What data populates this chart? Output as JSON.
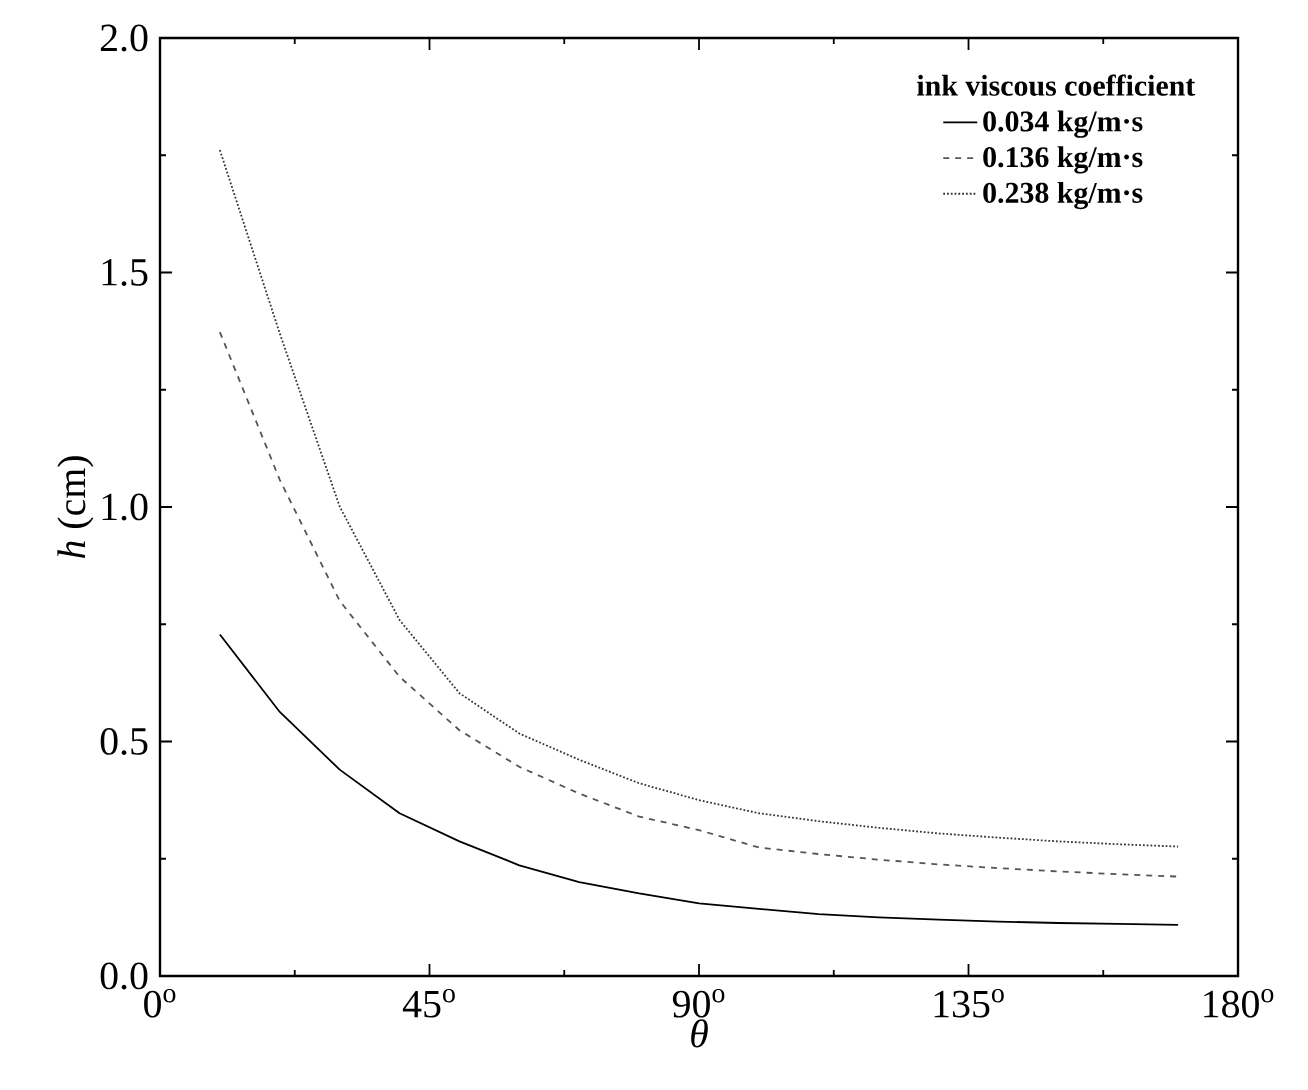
{
  "chart_data": {
    "type": "line",
    "xlabel": "θ",
    "ylabel": "*h* (cm)",
    "legend_title": "ink viscous coefficient",
    "legend": "top right",
    "marker": "none",
    "x": [
      10,
      20,
      30,
      40,
      50,
      60,
      70,
      80,
      90,
      100,
      110,
      120,
      130,
      140,
      150,
      160,
      170
    ],
    "xlim": [
      0,
      180
    ],
    "ylim": [
      0,
      2.0
    ],
    "xticks": [
      {
        "value": 0,
        "label": "0$^{o}$"
      },
      {
        "value": 45,
        "label": "45$^{o}$"
      },
      {
        "value": 90,
        "label": "90$^{o}$"
      },
      {
        "value": 135,
        "label": "135$^{o}$"
      },
      {
        "value": 180,
        "label": "180$^{o}$"
      }
    ],
    "yticks": [
      {
        "value": 0,
        "label": "0.0"
      },
      {
        "value": 0.5,
        "label": "0.5"
      },
      {
        "value": 1.0,
        "label": "1.0"
      },
      {
        "value": 1.5,
        "label": "1.5"
      },
      {
        "value": 2.0,
        "label": "2.0"
      }
    ],
    "series": [
      {
        "name": "0.034 kg/m·s",
        "color": "#000000",
        "line_style": "solid",
        "values": [
          0.728,
          0.563,
          0.44,
          0.347,
          0.287,
          0.236,
          0.2,
          0.176,
          0.155,
          0.143,
          0.132,
          0.125,
          0.12,
          0.116,
          0.113,
          0.111,
          0.109
        ]
      },
      {
        "name": "0.136 kg/m·s",
        "color": "#555555",
        "line_style": "dashed",
        "values": [
          1.373,
          1.058,
          0.8,
          0.638,
          0.524,
          0.446,
          0.389,
          0.34,
          0.311,
          0.274,
          0.26,
          0.248,
          0.238,
          0.23,
          0.223,
          0.217,
          0.212
        ]
      },
      {
        "name": "0.238 kg/m·s",
        "color": "#333333",
        "line_style": "dotted",
        "values": [
          1.761,
          1.37,
          1.001,
          0.759,
          0.603,
          0.517,
          0.461,
          0.411,
          0.375,
          0.347,
          0.33,
          0.316,
          0.304,
          0.295,
          0.287,
          0.281,
          0.276
        ]
      }
    ]
  }
}
